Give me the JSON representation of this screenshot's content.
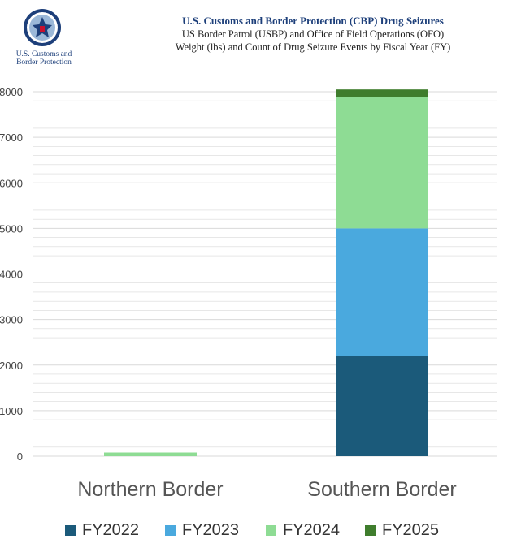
{
  "header": {
    "agency_line1": "U.S. Customs and",
    "agency_line2": "Border Protection",
    "title": "U.S. Customs and Border Protection (CBP) Drug Seizures",
    "subtitle1": "US Border Patrol (USBP) and Office of Field Operations (OFO)",
    "subtitle2": "Weight (lbs) and Count of Drug Seizure Events by Fiscal Year (FY)"
  },
  "colors": {
    "FY2022": "#1b5a7a",
    "FY2023": "#4aa9de",
    "FY2024": "#8edc94",
    "FY2025": "#3f7d2d",
    "grid": "#d9d9d9",
    "title": "#1d3f7a"
  },
  "chart_data": {
    "type": "bar",
    "stacked": true,
    "categories": [
      "Northern Border",
      "Southern Border"
    ],
    "series": [
      {
        "name": "FY2022",
        "values": [
          0,
          2200
        ]
      },
      {
        "name": "FY2023",
        "values": [
          0,
          2800
        ]
      },
      {
        "name": "FY2024",
        "values": [
          80,
          2880
        ]
      },
      {
        "name": "FY2025",
        "values": [
          0,
          170
        ]
      }
    ],
    "yticks": [
      "0",
      "1000",
      "2000",
      "3000",
      "4000",
      "5000",
      "6000",
      "7000",
      "8000"
    ],
    "ylim": [
      0,
      8000
    ],
    "minor_step": 200,
    "grid": true,
    "legend": "bottom"
  }
}
